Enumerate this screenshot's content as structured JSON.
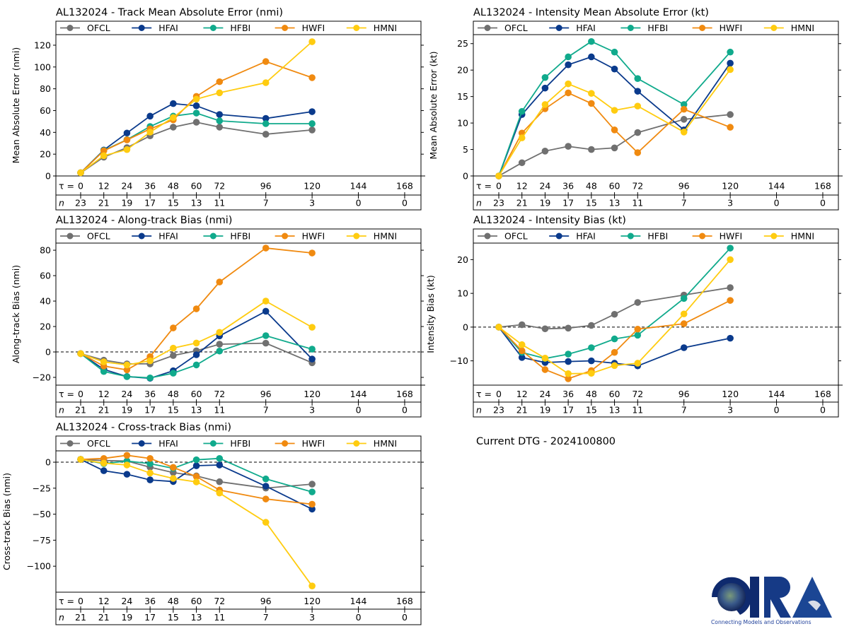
{
  "footer": {
    "dtg_label": "Current DTG - 2024100800"
  },
  "logo": {
    "text": "CIRA",
    "tagline": "Connecting Models and Observations"
  },
  "legend": [
    {
      "name": "OFCL",
      "color": "#707070"
    },
    {
      "name": "HFAI",
      "color": "#0a3a8c"
    },
    {
      "name": "HFBI",
      "color": "#10aa8c"
    },
    {
      "name": "HWFI",
      "color": "#f08a10"
    },
    {
      "name": "HMNI",
      "color": "#ffcc10"
    }
  ],
  "chart_data": [
    {
      "type": "line",
      "title": "AL132024 - Track Mean Absolute Error (nmi)",
      "ylabel": "Mean Absolute Error (nmi)",
      "xlabel": "τ",
      "ylim": [
        0,
        129.7
      ],
      "yticks": [
        0,
        20,
        40,
        60,
        80,
        100,
        120
      ],
      "zero_line": false,
      "x": [
        0,
        12,
        24,
        36,
        48,
        60,
        72,
        96,
        120
      ],
      "tau_ticks": [
        0,
        12,
        24,
        36,
        48,
        60,
        72,
        96,
        120,
        144,
        168
      ],
      "n_counts": [
        23,
        21,
        19,
        17,
        15,
        13,
        11,
        7,
        3,
        0,
        0
      ],
      "series": [
        {
          "name": "OFCL",
          "values": [
            2.8,
            17.3,
            26,
            36.8,
            44.8,
            49.3,
            44.8,
            38.3,
            42.2
          ]
        },
        {
          "name": "HFAI",
          "values": [
            3,
            23.8,
            39.4,
            54.9,
            66.4,
            64.4,
            56.4,
            52.8,
            59
          ]
        },
        {
          "name": "HFBI",
          "values": [
            3,
            23.4,
            33.3,
            45.4,
            54.9,
            57.7,
            50.6,
            48,
            48
          ]
        },
        {
          "name": "HWFI",
          "values": [
            3,
            23.1,
            33.1,
            43.2,
            51.5,
            73,
            86.5,
            105,
            90.2
          ]
        },
        {
          "name": "HMNI",
          "values": [
            3,
            18.6,
            24.2,
            40.2,
            53.6,
            70.5,
            76.3,
            85.6,
            123.2
          ]
        }
      ]
    },
    {
      "type": "line",
      "title": "AL132024 - Intensity Mean Absolute Error (kt)",
      "ylabel": "Mean Absolute Error (kt)",
      "xlabel": "τ",
      "ylim": [
        0,
        26.7
      ],
      "yticks": [
        0,
        5,
        10,
        15,
        20,
        25
      ],
      "zero_line": false,
      "x": [
        0,
        12,
        24,
        36,
        48,
        60,
        72,
        96,
        120
      ],
      "tau_ticks": [
        0,
        12,
        24,
        36,
        48,
        60,
        72,
        96,
        120,
        144,
        168
      ],
      "n_counts": [
        23,
        21,
        19,
        17,
        15,
        13,
        11,
        7,
        3,
        0,
        0
      ],
      "series": [
        {
          "name": "OFCL",
          "values": [
            0,
            2.5,
            4.7,
            5.6,
            5.0,
            5.3,
            8.2,
            10.7,
            11.6
          ]
        },
        {
          "name": "HFAI",
          "values": [
            0,
            11.6,
            16.6,
            21.0,
            22.5,
            20.2,
            16.0,
            8.7,
            21.3
          ]
        },
        {
          "name": "HFBI",
          "values": [
            0,
            12.2,
            18.6,
            22.5,
            25.4,
            23.4,
            18.4,
            13.5,
            23.4
          ]
        },
        {
          "name": "HWFI",
          "values": [
            0,
            8.1,
            12.7,
            15.7,
            13.7,
            8.7,
            4.4,
            12.6,
            9.2
          ]
        },
        {
          "name": "HMNI",
          "values": [
            0,
            7.2,
            13.5,
            17.4,
            15.6,
            12.4,
            13.2,
            8.3,
            20.1
          ]
        }
      ]
    },
    {
      "type": "line",
      "title": "AL132024 - Along-track Bias (nmi)",
      "ylabel": "Along-track Bias (nmi)",
      "xlabel": "τ",
      "ylim": [
        -26.1,
        85.6
      ],
      "yticks": [
        -20,
        0,
        20,
        40,
        60,
        80
      ],
      "zero_line": true,
      "x": [
        0,
        12,
        24,
        36,
        48,
        60,
        72,
        96,
        120
      ],
      "tau_ticks": [
        0,
        12,
        24,
        36,
        48,
        60,
        72,
        96,
        120,
        144,
        168
      ],
      "n_counts": [
        21,
        21,
        19,
        17,
        15,
        13,
        11,
        7,
        3,
        0,
        0
      ],
      "series": [
        {
          "name": "OFCL",
          "values": [
            -1.3,
            -6.5,
            -9.4,
            -9.4,
            -2.8,
            0.9,
            6.1,
            6.9,
            -8.5
          ]
        },
        {
          "name": "HFAI",
          "values": [
            -1.3,
            -13.7,
            -19.3,
            -20.7,
            -14.8,
            -2.2,
            12.6,
            32,
            -5.6
          ]
        },
        {
          "name": "HFBI",
          "values": [
            -1.3,
            -15.4,
            -19.4,
            -20.4,
            -16.7,
            -10.2,
            0.7,
            12.8,
            2.2
          ]
        },
        {
          "name": "HWFI",
          "values": [
            -1.3,
            -11.1,
            -14.1,
            -3.7,
            18.9,
            33.9,
            55,
            81.7,
            77.8
          ]
        },
        {
          "name": "HMNI",
          "values": [
            -1.3,
            -7.8,
            -10.2,
            -7.0,
            3.0,
            7.0,
            15.4,
            40,
            19.4
          ]
        }
      ]
    },
    {
      "type": "line",
      "title": "AL132024 - Intensity Bias (kt)",
      "ylabel": "Intensity Bias (kt)",
      "xlabel": "τ",
      "ylim": [
        -17.2,
        24.9
      ],
      "yticks": [
        -10,
        0,
        10,
        20
      ],
      "zero_line": true,
      "x": [
        0,
        12,
        24,
        36,
        48,
        60,
        72,
        96,
        120
      ],
      "tau_ticks": [
        0,
        12,
        24,
        36,
        48,
        60,
        72,
        96,
        120,
        144,
        168
      ],
      "n_counts": [
        23,
        21,
        19,
        17,
        15,
        13,
        11,
        7,
        3,
        0,
        0
      ],
      "series": [
        {
          "name": "OFCL",
          "values": [
            0,
            0.7,
            -0.5,
            -0.3,
            0.5,
            3.8,
            7.3,
            9.5,
            11.7
          ]
        },
        {
          "name": "HFAI",
          "values": [
            0,
            -9.0,
            -10.5,
            -10.2,
            -10.0,
            -10.7,
            -11.5,
            -6.1,
            -3.3
          ]
        },
        {
          "name": "HFBI",
          "values": [
            0,
            -7.5,
            -9.3,
            -8.0,
            -6.1,
            -3.5,
            -2.4,
            8.5,
            23.4
          ]
        },
        {
          "name": "HWFI",
          "values": [
            0,
            -7.0,
            -12.6,
            -15.3,
            -12.9,
            -7.5,
            -0.6,
            1.0,
            7.9
          ]
        },
        {
          "name": "HMNI",
          "values": [
            0,
            -5.2,
            -9.2,
            -13.8,
            -13.7,
            -11.4,
            -10.7,
            3.9,
            20
          ]
        }
      ]
    },
    {
      "type": "line",
      "title": "AL132024 - Cross-track Bias (nmi)",
      "ylabel": "Cross-track Bias (nmi)",
      "xlabel": "τ",
      "ylim": [
        -125,
        10.9
      ],
      "yticks": [
        -100,
        -75,
        -50,
        -25,
        0
      ],
      "zero_line": true,
      "x": [
        0,
        12,
        24,
        36,
        48,
        60,
        72,
        96,
        120
      ],
      "tau_ticks": [
        0,
        12,
        24,
        36,
        48,
        60,
        72,
        96,
        120,
        144,
        168
      ],
      "n_counts": [
        21,
        21,
        19,
        17,
        15,
        13,
        11,
        7,
        3,
        0,
        0
      ],
      "series": [
        {
          "name": "OFCL",
          "values": [
            2.7,
            1.6,
            1.1,
            -4.8,
            -10,
            -13.2,
            -18.8,
            -24.9,
            -21.1
          ]
        },
        {
          "name": "HFAI",
          "values": [
            2.7,
            -8.2,
            -11.6,
            -17,
            -18.6,
            -3.4,
            -2.7,
            -23.1,
            -45.1
          ]
        },
        {
          "name": "HFBI",
          "values": [
            2.7,
            -1.4,
            1.1,
            -1.4,
            -5.9,
            2.3,
            3.6,
            -16.1,
            -28.6
          ]
        },
        {
          "name": "HWFI",
          "values": [
            2.7,
            3.6,
            6.6,
            3.6,
            -5,
            -13.8,
            -26.8,
            -35.4,
            -40.4
          ]
        },
        {
          "name": "HMNI",
          "values": [
            2.7,
            -0.9,
            -2.7,
            -10.4,
            -15.6,
            -19,
            -29.7,
            -57.8,
            -119
          ]
        }
      ]
    }
  ]
}
